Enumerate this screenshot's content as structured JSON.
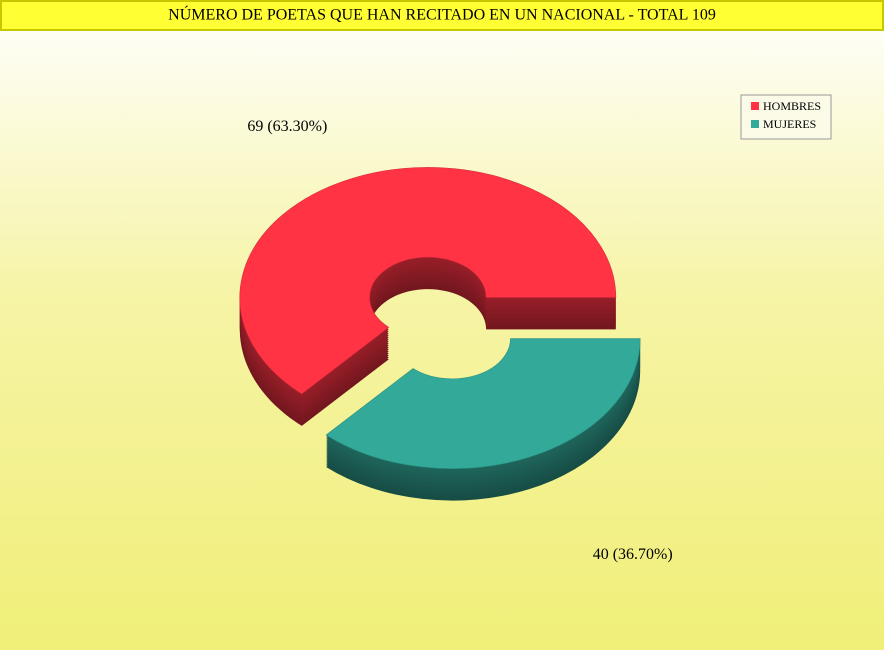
{
  "chart_data": {
    "type": "donut",
    "title": "NÚMERO DE POETAS QUE HAN RECITADO EN UN NACIONAL - TOTAL 109",
    "categories": [
      "HOMBRES",
      "MUJERES"
    ],
    "values": [
      69,
      40
    ],
    "value_labels": [
      "69 (63.30%)",
      "40 (36.70%)"
    ],
    "colors": [
      "#ff3344",
      "#33aa99"
    ],
    "legend": "top-right"
  }
}
